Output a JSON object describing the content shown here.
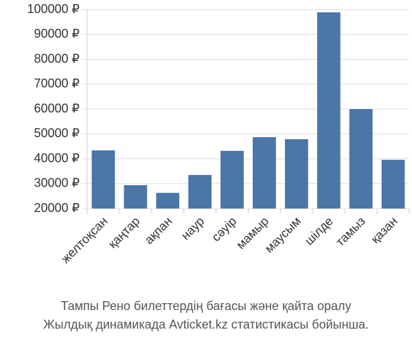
{
  "chart_data": {
    "type": "bar",
    "title": "Тампы Рено билеттердің бағасы және қайта оралу",
    "subtitle": "Жылдық динамикада Avticket.kz статистикасы бойынша.",
    "categories": [
      "желтоқсан",
      "қаңтар",
      "ақпан",
      "наур",
      "сәуір",
      "мамыр",
      "маусым",
      "шілде",
      "тамыз",
      "қазан"
    ],
    "values": [
      43400,
      29400,
      26300,
      33500,
      43200,
      48700,
      47900,
      98900,
      60000,
      39600
    ],
    "color": "#4a76a8",
    "ylim": [
      20000,
      100000
    ],
    "yticks": [
      {
        "value": 20000,
        "label": "20000 ₽"
      },
      {
        "value": 30000,
        "label": "30000 ₽"
      },
      {
        "value": 40000,
        "label": "40000 ₽"
      },
      {
        "value": 50000,
        "label": "50000 ₽"
      },
      {
        "value": 60000,
        "label": "60000 ₽"
      },
      {
        "value": 70000,
        "label": "70000 ₽"
      },
      {
        "value": 80000,
        "label": "80000 ₽"
      },
      {
        "value": 90000,
        "label": "90000 ₽"
      },
      {
        "value": 100000,
        "label": "100000 ₽"
      }
    ],
    "grid": true
  }
}
